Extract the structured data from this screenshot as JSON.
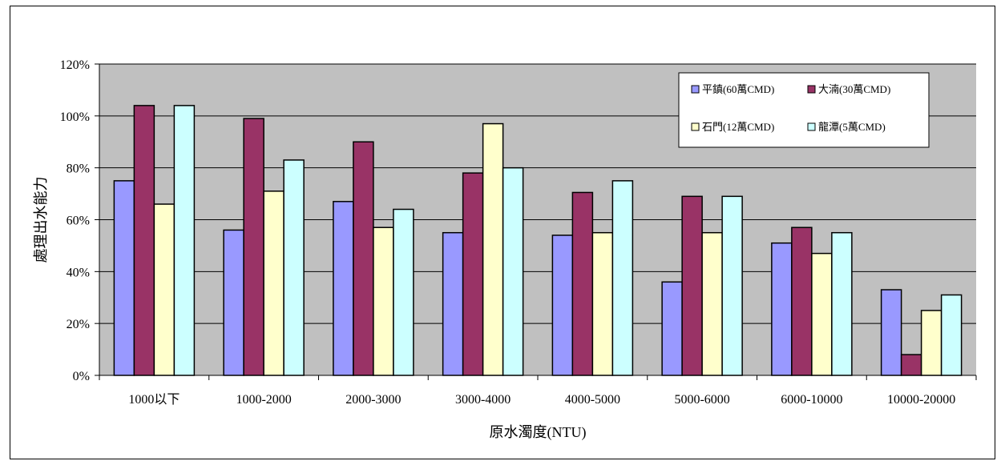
{
  "chart_data": {
    "type": "bar",
    "title": "",
    "xlabel": "原水濁度(NTU)",
    "ylabel": "處理出水能力",
    "ylim": [
      0,
      120
    ],
    "yticks": [
      "0%",
      "20%",
      "40%",
      "60%",
      "80%",
      "100%",
      "120%"
    ],
    "ytick_values": [
      0,
      20,
      40,
      60,
      80,
      100,
      120
    ],
    "grid": true,
    "legend_position": "top-right",
    "categories": [
      "1000以下",
      "1000-2000",
      "2000-3000",
      "3000-4000",
      "4000-5000",
      "5000-6000",
      "6000-10000",
      "10000-20000"
    ],
    "series": [
      {
        "name": "平鎮(60萬CMD)",
        "color": "#9999ff",
        "values": [
          75,
          56,
          67,
          55,
          54,
          36,
          51,
          33
        ]
      },
      {
        "name": "大湳(30萬CMD)",
        "color": "#993366",
        "values": [
          104,
          99,
          90,
          78,
          70.5,
          69,
          57,
          8
        ]
      },
      {
        "name": "石門(12萬CMD)",
        "color": "#ffffcc",
        "values": [
          66,
          71,
          57,
          97,
          55,
          55,
          47,
          25
        ]
      },
      {
        "name": "龍潭(5萬CMD)",
        "color": "#ccffff",
        "values": [
          104,
          83,
          64,
          80,
          75,
          69,
          55,
          31
        ]
      }
    ],
    "plot_background": "#c0c0c0"
  }
}
